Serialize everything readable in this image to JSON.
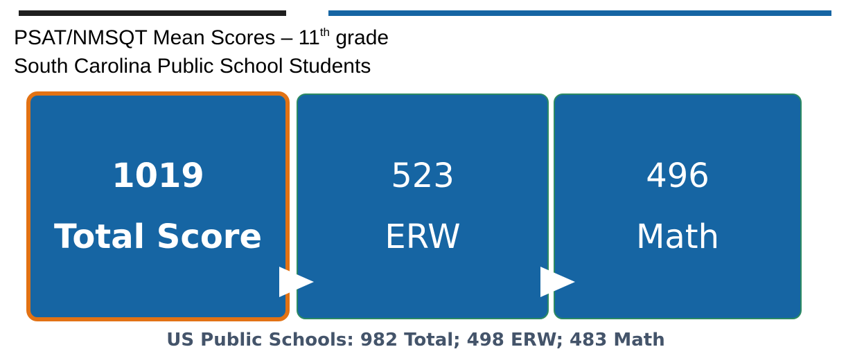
{
  "header": {
    "title_line1_prefix": "PSAT/NMSQT Mean Scores – 11",
    "title_line1_superscript": "th",
    "title_line1_suffix": " grade",
    "title_line2": "South Carolina Public School Students"
  },
  "cards": [
    {
      "value": "1019",
      "label": "Total Score"
    },
    {
      "value": "523",
      "label": "ERW"
    },
    {
      "value": "496",
      "label": "Math"
    }
  ],
  "footer": {
    "text": "US Public Schools: 982 Total; 498 ERW; 483 Math"
  },
  "colors": {
    "card_fill": "#1665a3",
    "highlight_border": "#e27214",
    "card_border": "#2c8a63",
    "top_bar_dark": "#1f1f1f",
    "top_bar_blue": "#1665a3",
    "footer_text": "#44546a"
  }
}
